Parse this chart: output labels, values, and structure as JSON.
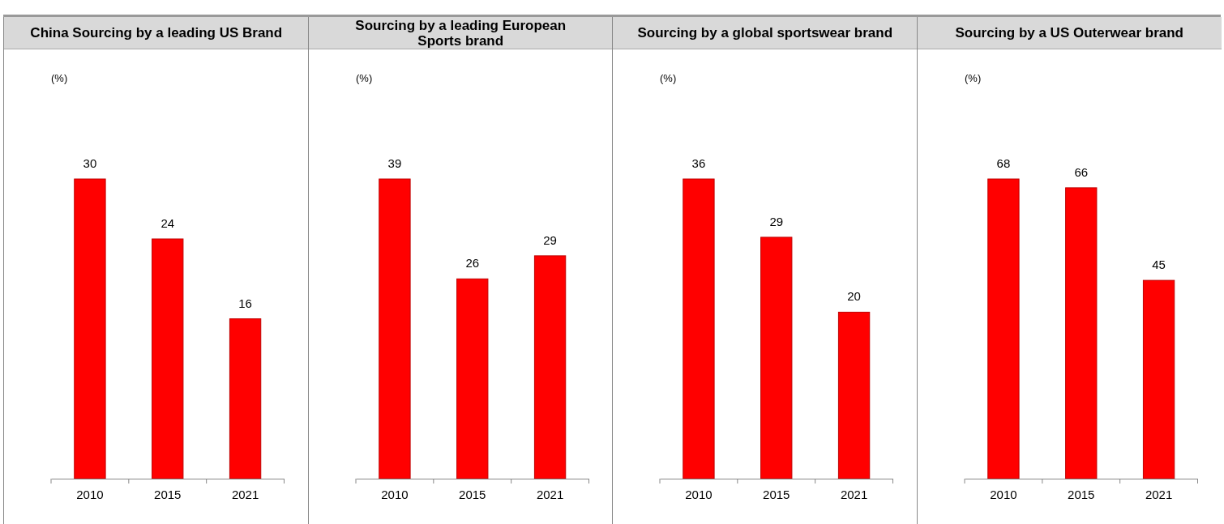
{
  "chart_data": [
    {
      "type": "bar",
      "title": "China Sourcing by a leading US Brand",
      "ylabel": "(%)",
      "categories": [
        "2010",
        "2015",
        "2021"
      ],
      "values": [
        30,
        24,
        16
      ],
      "color": "#ff0000",
      "data_labels": true
    },
    {
      "type": "bar",
      "title": "Sourcing by a leading European Sports brand",
      "ylabel": "(%)",
      "categories": [
        "2010",
        "2015",
        "2021"
      ],
      "values": [
        39,
        26,
        29
      ],
      "color": "#ff0000",
      "data_labels": true
    },
    {
      "type": "bar",
      "title": "Sourcing by a global sportswear brand",
      "ylabel": "(%)",
      "categories": [
        "2010",
        "2015",
        "2021"
      ],
      "values": [
        36,
        29,
        20
      ],
      "color": "#ff0000",
      "data_labels": true
    },
    {
      "type": "bar",
      "title": "Sourcing by a US Outerwear brand",
      "ylabel": "(%)",
      "categories": [
        "2010",
        "2015",
        "2021"
      ],
      "values": [
        68,
        66,
        45
      ],
      "color": "#ff0000",
      "data_labels": true
    }
  ]
}
